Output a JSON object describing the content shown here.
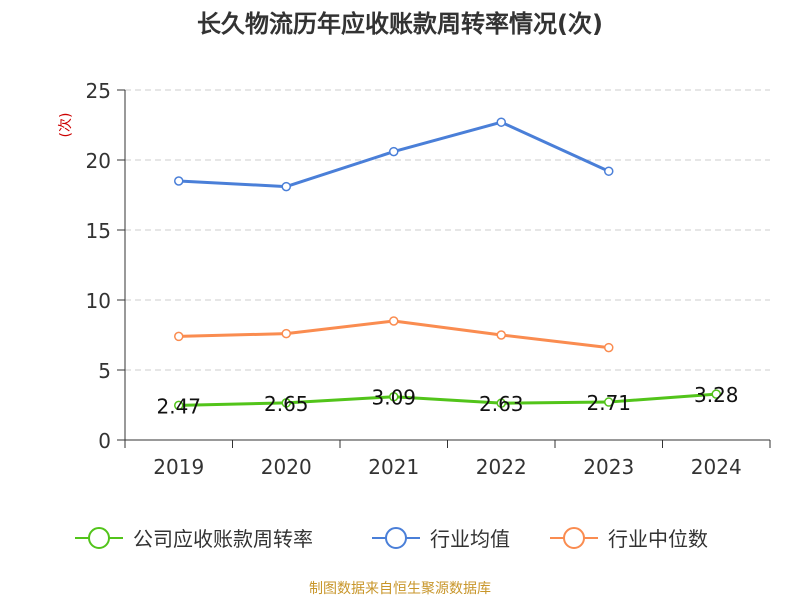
{
  "chart_data": {
    "type": "line",
    "title": "长久物流历年应收账款周转率情况(次)",
    "ylabel": "(次)",
    "categories": [
      "2019",
      "2020",
      "2021",
      "2022",
      "2023",
      "2024"
    ],
    "ylim": [
      0,
      25
    ],
    "yticks": [
      0,
      5,
      10,
      15,
      20,
      25
    ],
    "grid": true,
    "legend_position": "bottom",
    "series": [
      {
        "name": "公司应收账款周转率",
        "values": [
          2.47,
          2.65,
          3.09,
          2.63,
          2.71,
          3.28
        ],
        "color": "#52c41a",
        "show_labels": true
      },
      {
        "name": "行业均值",
        "values": [
          18.5,
          18.1,
          20.6,
          22.7,
          19.2,
          null
        ],
        "color": "#4a7fd8",
        "show_labels": false
      },
      {
        "name": "行业中位数",
        "values": [
          7.4,
          7.6,
          8.5,
          7.5,
          6.6,
          null
        ],
        "color": "#fa8c50",
        "show_labels": false
      }
    ],
    "source": "制图数据来自恒生聚源数据库"
  }
}
